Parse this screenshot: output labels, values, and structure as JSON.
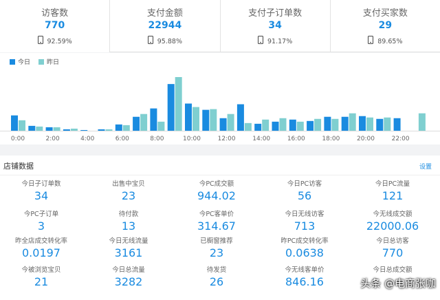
{
  "kpis": [
    {
      "title": "访客数",
      "value": "770",
      "ratio": "92.59%",
      "icon": "phone-icon"
    },
    {
      "title": "支付金额",
      "value": "22944",
      "ratio": "95.88%",
      "icon": "phone-icon"
    },
    {
      "title": "支付子订单数",
      "value": "34",
      "ratio": "91.17%",
      "icon": "phone-icon"
    },
    {
      "title": "支付买家数",
      "value": "29",
      "ratio": "89.65%",
      "icon": "phone-icon"
    }
  ],
  "chart_data": {
    "type": "bar",
    "categories": [
      "0:00",
      "1:00",
      "2:00",
      "3:00",
      "4:00",
      "5:00",
      "6:00",
      "7:00",
      "8:00",
      "9:00",
      "10:00",
      "11:00",
      "12:00",
      "13:00",
      "14:00",
      "15:00",
      "16:00",
      "17:00",
      "18:00",
      "19:00",
      "20:00",
      "21:00",
      "22:00",
      "23:00"
    ],
    "x_tick_labels": [
      "0:00",
      "2:00",
      "4:00",
      "6:00",
      "8:00",
      "10:00",
      "12:00",
      "14:00",
      "16:00",
      "18:00",
      "20:00",
      "22:00"
    ],
    "series": [
      {
        "name": "今日",
        "color": "#1a8be0",
        "values": [
          22,
          7,
          5,
          2,
          1,
          2,
          9,
          20,
          32,
          67,
          39,
          30,
          18,
          38,
          10,
          13,
          16,
          14,
          20,
          20,
          21,
          17,
          18,
          0
        ]
      },
      {
        "name": "昨日",
        "color": "#7fcfd0",
        "values": [
          15,
          6,
          5,
          3,
          0,
          2,
          8,
          24,
          13,
          77,
          34,
          31,
          24,
          11,
          16,
          18,
          13,
          17,
          17,
          25,
          19,
          19,
          0,
          25
        ]
      }
    ],
    "legend": "top-left",
    "grid": false
  },
  "store": {
    "title": "店铺数据",
    "settings_label": "设置",
    "metrics": [
      {
        "label": "今日子订单数",
        "value": "34"
      },
      {
        "label": "出售中宝贝",
        "value": "23"
      },
      {
        "label": "今PC成交额",
        "value": "944.02"
      },
      {
        "label": "今日PC访客",
        "value": "56"
      },
      {
        "label": "今日PC流量",
        "value": "121"
      },
      {
        "label": "今PC子订单",
        "value": "3"
      },
      {
        "label": "待付款",
        "value": "13"
      },
      {
        "label": "今PC客单价",
        "value": "314.67"
      },
      {
        "label": "今日无线访客",
        "value": "713"
      },
      {
        "label": "今无线成交额",
        "value": "22000.06"
      },
      {
        "label": "昨全店成交转化率",
        "value": "0.0197"
      },
      {
        "label": "今日无线流量",
        "value": "3161"
      },
      {
        "label": "已橱窗推荐",
        "value": "23"
      },
      {
        "label": "昨PC成交转化率",
        "value": "0.0638"
      },
      {
        "label": "今日总访客",
        "value": "770"
      },
      {
        "label": "今被浏览宝贝",
        "value": "21"
      },
      {
        "label": "今日总流量",
        "value": "3282"
      },
      {
        "label": "待发货",
        "value": "26"
      },
      {
        "label": "今无线客单价",
        "value": "846.16"
      },
      {
        "label": "今日总成交额",
        "value": ""
      }
    ]
  },
  "watermark": "头条 @电商张咖"
}
